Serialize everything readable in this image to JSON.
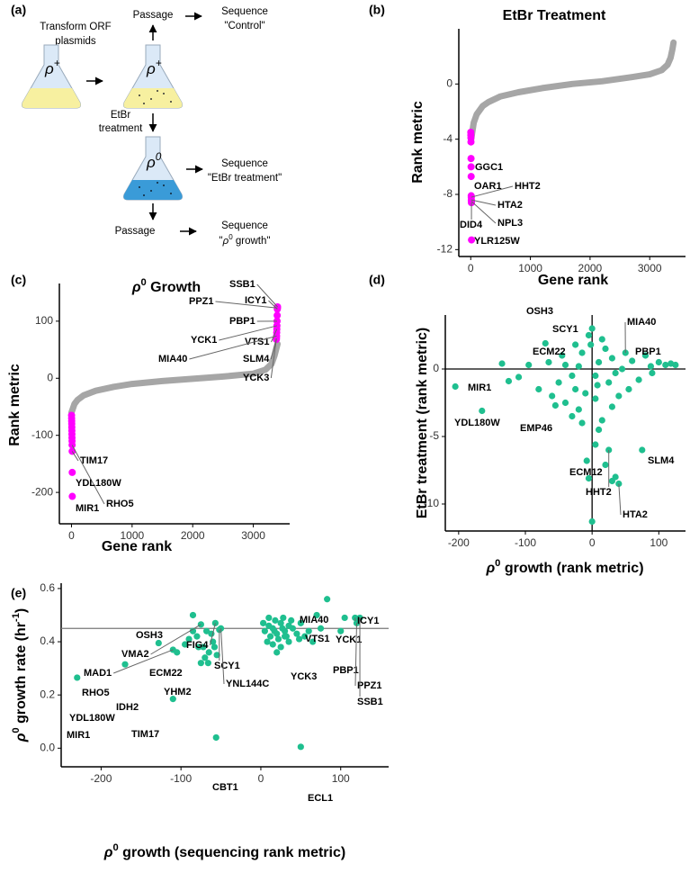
{
  "diagram": {
    "panel": "(a)",
    "start": [
      "Transform ORF",
      "plasmids"
    ],
    "flask_labels": [
      [
        "ρ",
        "+"
      ],
      [
        "ρ",
        "+"
      ],
      [
        "ρ",
        "0"
      ]
    ],
    "passage_1": "Passage",
    "sequence_1": [
      "Sequence",
      "\"Control\""
    ],
    "treatment": [
      "EtBr",
      "treatment"
    ],
    "sequence_2": [
      "Sequence",
      "\"EtBr treatment\""
    ],
    "passage_2": "Passage",
    "sequence_3": [
      "Sequence",
      [
        "\"",
        "ρ",
        "0",
        " growth\""
      ]
    ]
  },
  "chart_data": [
    {
      "panel": "(b)",
      "type": "rank",
      "title": "EtBr Treatment",
      "x_label": "Gene rank",
      "y_label": "Rank metric",
      "xlim": [
        -200,
        3600
      ],
      "xticks": [
        0,
        1000,
        2000,
        3000
      ],
      "ylim": [
        -12.5,
        4
      ],
      "yticks": [
        0,
        -4,
        -8,
        -12
      ],
      "series": [
        {
          "color": "#a6a6a6",
          "x": [
            0,
            50,
            100,
            200,
            300,
            500,
            800,
            1200,
            1700,
            2200,
            2700,
            3000,
            3200,
            3300,
            3350,
            3380,
            3400
          ],
          "values": [
            -4.2,
            -2.8,
            -2.2,
            -1.6,
            -1.3,
            -0.9,
            -0.6,
            -0.3,
            0,
            0.2,
            0.5,
            0.7,
            1.0,
            1.4,
            1.9,
            2.5,
            3.0
          ]
        },
        {
          "color": "#ff00ff",
          "x": [
            1,
            2,
            3,
            4,
            5,
            6,
            7,
            8,
            9,
            10,
            11,
            12,
            13
          ],
          "values": [
            -3.5,
            -3.7,
            -3.9,
            -4.2,
            -5.4,
            -6.0,
            -6.7,
            -8.1,
            -8.2,
            -8.4,
            -8.5,
            -8.6,
            -11.3
          ],
          "labels": [
            null,
            null,
            null,
            null,
            null,
            "GGC1",
            null,
            "OAR1",
            "HHT2",
            "HTA2",
            "NPL3",
            "DID4",
            "YLR125W"
          ]
        }
      ]
    },
    {
      "panel": "(c)",
      "type": "rank",
      "title": [
        "ρ",
        "0",
        " Growth"
      ],
      "x_label": "Gene rank",
      "y_label": "Rank metric",
      "xlim": [
        -200,
        3600
      ],
      "xticks": [
        0,
        1000,
        2000,
        3000
      ],
      "ylim": [
        -255,
        166
      ],
      "yticks": [
        100,
        0,
        -100,
        -200
      ],
      "series": [
        {
          "color": "#a6a6a6",
          "x": [
            0,
            50,
            100,
            200,
            400,
            700,
            1000,
            1500,
            2000,
            2500,
            3000,
            3200,
            3300,
            3350,
            3400
          ],
          "values": [
            -60,
            -45,
            -38,
            -30,
            -22,
            -15,
            -10,
            -5,
            -1,
            3,
            8,
            15,
            25,
            40,
            60
          ]
        },
        {
          "color": "#ff00ff",
          "x": [
            1,
            2,
            3,
            4,
            5,
            6,
            7,
            8,
            9,
            10,
            11,
            12,
            13,
            3400,
            3398,
            3396,
            3394,
            3392,
            3390,
            3388,
            3386,
            3384,
            3382,
            3380
          ],
          "values": [
            -65,
            -70,
            -75,
            -80,
            -86,
            -92,
            -98,
            -104,
            -110,
            -117,
            -128,
            -165,
            -207,
            125,
            123,
            121,
            110,
            100,
            92,
            86,
            80,
            74,
            70,
            68
          ],
          "labels": [
            null,
            null,
            null,
            null,
            null,
            null,
            null,
            null,
            null,
            "RHO5",
            "TIM17",
            "YDL180W",
            "MIR1",
            "SSB1",
            "PPZ1",
            "ICY1",
            null,
            "PBP1",
            "YCK1",
            "VTS1",
            null,
            "MIA40",
            "SLM4",
            "YCK3"
          ]
        }
      ]
    },
    {
      "panel": "(d)",
      "type": "scatter",
      "x_label": [
        "ρ",
        "0",
        " growth (rank metric)"
      ],
      "y_label": "EtBr treatment (rank metric)",
      "xlim": [
        -220,
        140
      ],
      "xticks": [
        -200,
        -100,
        0,
        100
      ],
      "ylim": [
        -12,
        4
      ],
      "yticks": [
        0,
        -5,
        -10
      ],
      "hlines": [
        0
      ],
      "vlines": [
        0
      ],
      "series": [
        {
          "color": "#1fbf8f",
          "x": [
            -70,
            -25,
            50,
            -40,
            110,
            -205,
            -165,
            -55,
            5,
            25,
            75,
            40,
            0,
            -5,
            30,
            20,
            35,
            -8,
            10,
            -15,
            -30,
            15,
            30,
            -110,
            -95,
            -125,
            -135,
            60,
            80,
            88,
            100,
            118,
            125,
            90,
            -80,
            -60,
            -40,
            -20,
            40,
            55,
            25,
            -10,
            5,
            -50,
            -30,
            10,
            20,
            -5,
            0,
            15,
            -15,
            30,
            45,
            -45,
            -20,
            5,
            -65,
            70,
            -2,
            8,
            -25,
            35
          ],
          "values": [
            1.9,
            1.8,
            1.2,
            0.3,
            0.3,
            -1.3,
            -3.1,
            -2.7,
            -5.6,
            -6.0,
            -6.0,
            -8.5,
            -11.3,
            -8.1,
            -8.3,
            -7.1,
            -8.0,
            -6.8,
            -4.5,
            -4.0,
            -3.5,
            -3.8,
            -2.8,
            -0.6,
            0.3,
            -0.9,
            0.4,
            0.6,
            1.0,
            0.2,
            0.5,
            0.4,
            0.3,
            -0.3,
            -1.5,
            -2.0,
            -2.5,
            -3.0,
            -2.0,
            -1.5,
            -1.0,
            -1.8,
            -2.2,
            -1.0,
            -0.5,
            0.5,
            1.5,
            2.5,
            3.0,
            2.2,
            1.2,
            0.8,
            0.0,
            1.0,
            0.2,
            -0.5,
            0.5,
            -0.8,
            1.8,
            -1.2,
            -1.5,
            -0.3
          ],
          "labels": [
            "OSH3",
            "SCY1",
            "MIA40",
            "ECM22",
            "PBP1",
            "MIR1",
            "YDL180W",
            "EMP46",
            "ECM12",
            "HHT2",
            "SLM4",
            "HTA2",
            null,
            null,
            null,
            null,
            null,
            null,
            null,
            null,
            null,
            null,
            null,
            null,
            null,
            null,
            null,
            null,
            null,
            null,
            null,
            null,
            null,
            null,
            null,
            null,
            null,
            null,
            null,
            null,
            null,
            null,
            null,
            null,
            null,
            null,
            null,
            null,
            null,
            null,
            null,
            null,
            null,
            null,
            null,
            null,
            null,
            null,
            null,
            null,
            null,
            null
          ]
        }
      ]
    },
    {
      "panel": "(e)",
      "type": "scatter",
      "x_label": [
        "ρ",
        "0",
        " growth (sequencing rank metric)"
      ],
      "y_label": [
        "ρ",
        "0",
        " growth rate (hr",
        "-1",
        ")"
      ],
      "xlim": [
        -250,
        160
      ],
      "xticks": [
        -200,
        -100,
        0,
        100
      ],
      "ylim": [
        -0.07,
        0.62
      ],
      "yticks": [
        {
          "value": 0,
          "label": "0.0"
        },
        0.2,
        0.4,
        0.6
      ],
      "hlines": [
        0.45
      ],
      "series": [
        {
          "color": "#1fbf8f",
          "x": [
            -230,
            -170,
            -128,
            -110,
            -105,
            -110,
            -85,
            -75,
            -57,
            -62,
            -52,
            -72,
            -50,
            -56,
            50,
            83,
            70,
            105,
            118,
            100,
            32,
            120,
            124,
            5,
            10,
            15,
            20,
            25,
            30,
            35,
            40,
            12,
            18,
            22,
            28,
            8,
            15,
            25,
            35,
            45,
            50,
            55,
            60,
            65,
            75,
            3,
            17,
            27,
            38,
            48,
            20,
            10,
            30,
            -80,
            -70,
            -75,
            -65,
            -60,
            -55,
            -90,
            -85,
            -95,
            -68,
            -78,
            -66,
            -58
          ],
          "values": [
            0.265,
            0.315,
            0.395,
            0.37,
            0.36,
            0.185,
            0.5,
            0.465,
            0.47,
            0.43,
            0.445,
            0.38,
            0.45,
            0.04,
            0.005,
            0.56,
            0.5,
            0.49,
            0.49,
            0.44,
            0.42,
            0.47,
            0.49,
            0.44,
            0.46,
            0.45,
            0.43,
            0.47,
            0.44,
            0.46,
            0.45,
            0.42,
            0.48,
            0.41,
            0.49,
            0.4,
            0.39,
            0.38,
            0.4,
            0.43,
            0.47,
            0.42,
            0.44,
            0.4,
            0.45,
            0.47,
            0.44,
            0.45,
            0.48,
            0.41,
            0.36,
            0.49,
            0.42,
            0.42,
            0.34,
            0.32,
            0.36,
            0.4,
            0.35,
            0.41,
            0.44,
            0.39,
            0.44,
            0.38,
            0.32,
            0.38
          ],
          "labels": [
            "MIR1",
            "YDL180W",
            "RHO5",
            "MAD1",
            "IDH2",
            "TIM17",
            "OSH3",
            "VMA2",
            "FIG4",
            "ECM22",
            "SCY1",
            "YHM2",
            "YNL144C",
            "CBT1",
            "ECL1",
            "MIA40",
            "VTS1",
            "YCK1",
            "ICY1",
            "PBP1",
            "YCK3",
            "PPZ1",
            "SSB1",
            null,
            null,
            null,
            null,
            null,
            null,
            null,
            null,
            null,
            null,
            null,
            null,
            null,
            null,
            null,
            null,
            null,
            null,
            null,
            null,
            null,
            null,
            null,
            null,
            null,
            null,
            null,
            null,
            null,
            null,
            null,
            null,
            null,
            null,
            null,
            null,
            null,
            null,
            null,
            null,
            null,
            null,
            null
          ]
        }
      ]
    }
  ]
}
